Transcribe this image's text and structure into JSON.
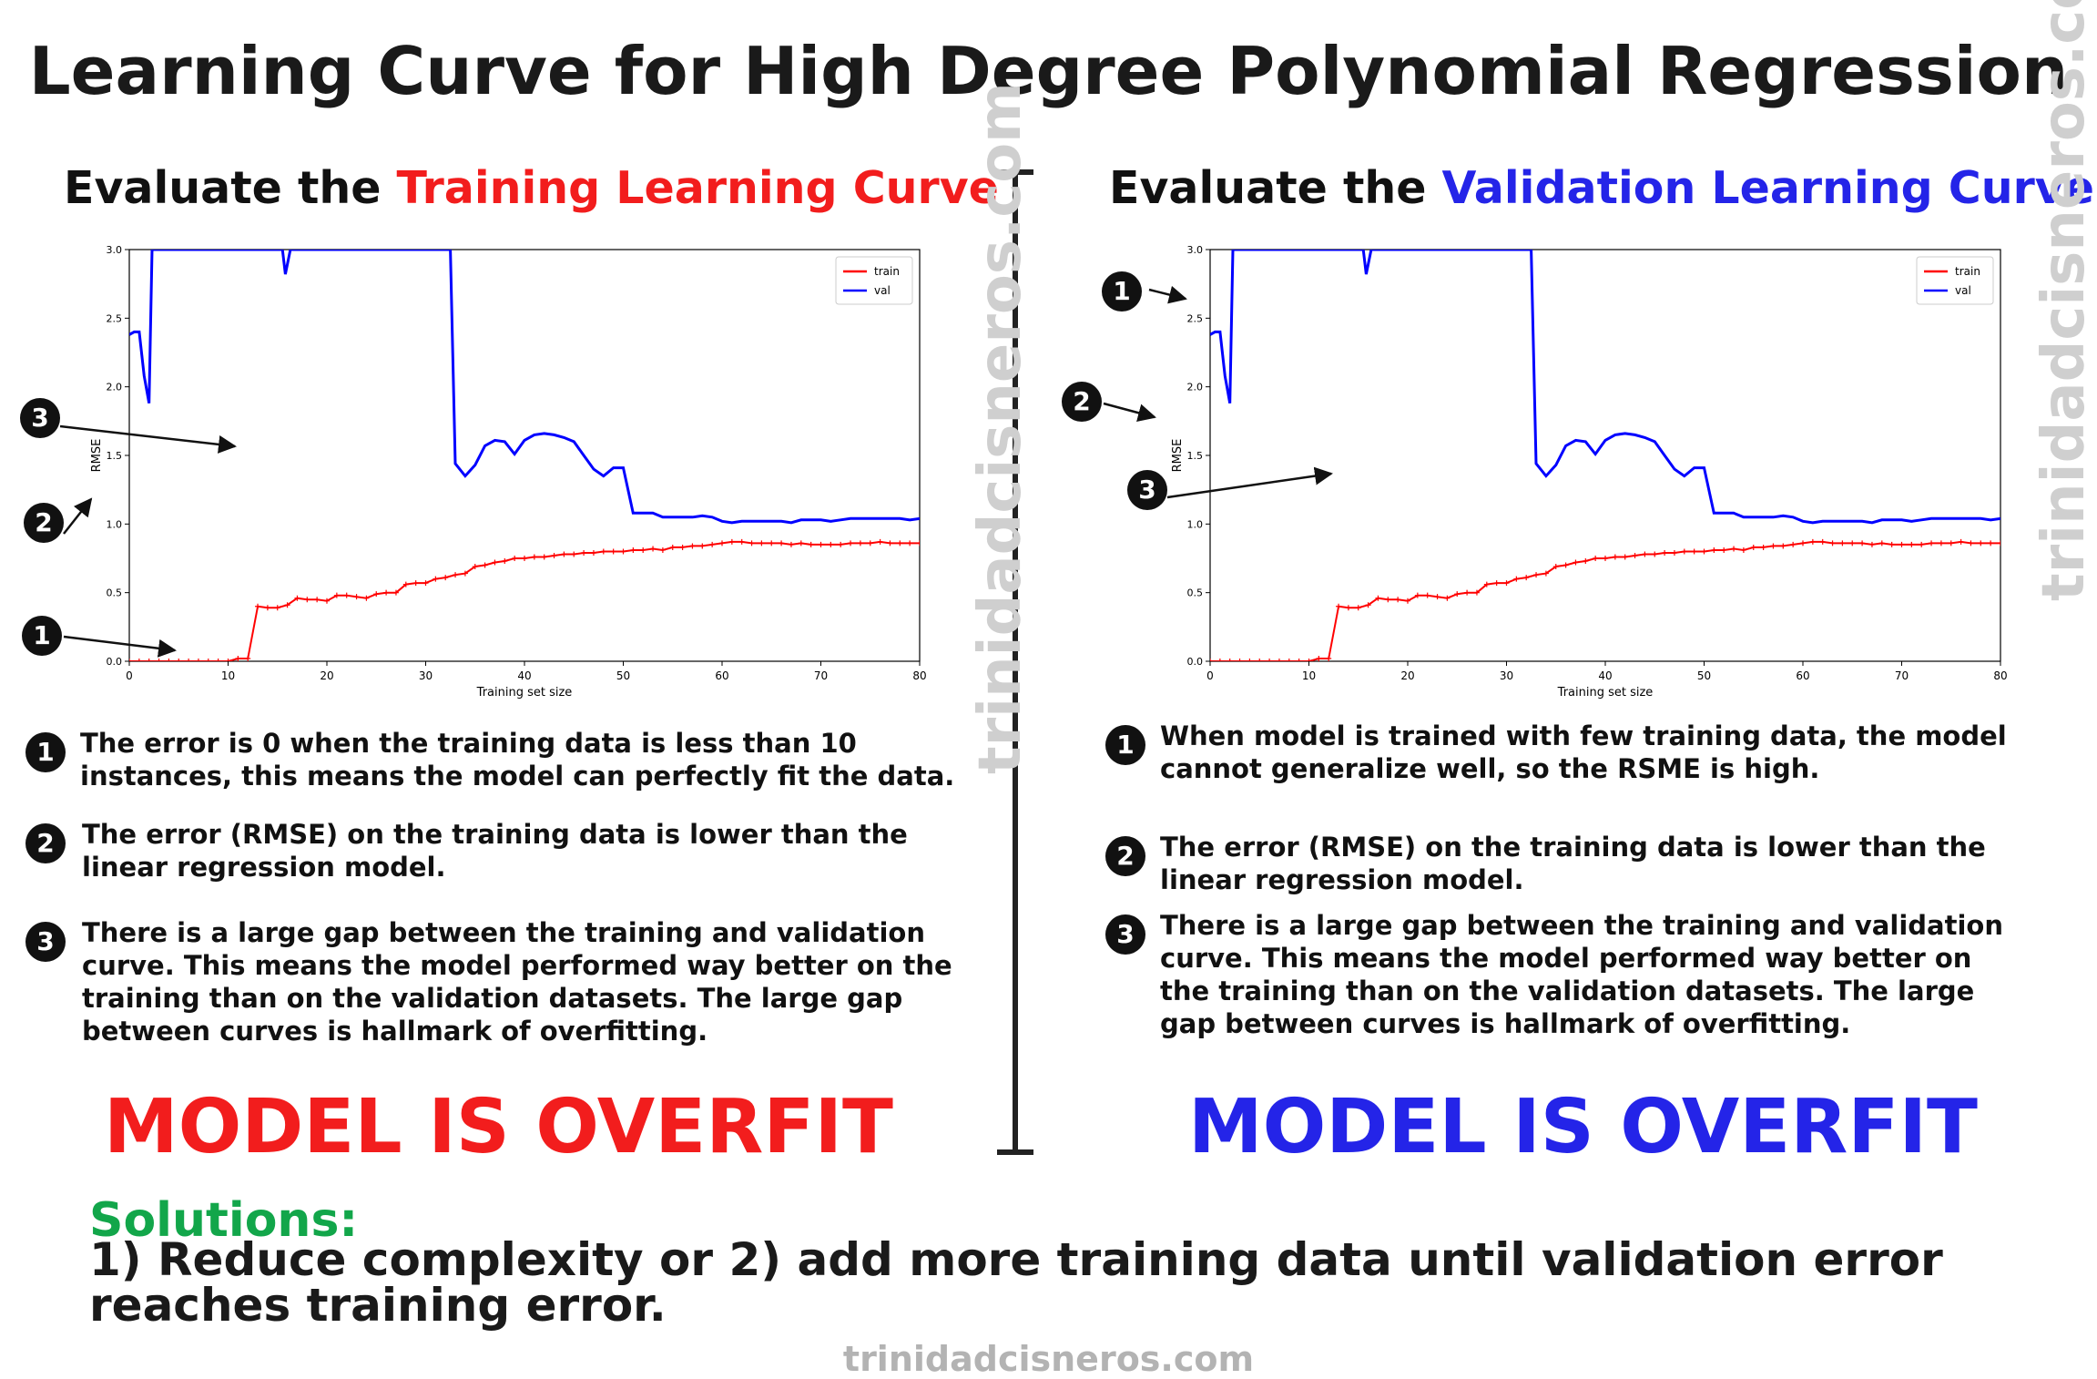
{
  "title": "Learning Curve for High Degree Polynomial Regression",
  "left": {
    "subtitle_prefix": "Evaluate the ",
    "subtitle_highlight": "Training Learning Curve",
    "verdict": "MODEL IS OVERFIT",
    "notes": [
      {
        "num": "1",
        "text": "The error is 0 when the training data is less than 10 instances, this means the model can perfectly fit the data."
      },
      {
        "num": "2",
        "text": "The error (RMSE) on the training data is lower than the linear regression model."
      },
      {
        "num": "3",
        "text": "There is a large gap between the training and validation curve. This means the model performed way better on the training than on the validation datasets. The large gap between curves is hallmark of overfitting."
      }
    ],
    "callouts": [
      "3",
      "2",
      "1"
    ]
  },
  "right": {
    "subtitle_prefix": "Evaluate the ",
    "subtitle_highlight": "Validation Learning Curve",
    "verdict": "MODEL IS OVERFIT",
    "notes": [
      {
        "num": "1",
        "text": "When model is trained with few training data, the model cannot generalize well, so the RSME is high."
      },
      {
        "num": "2",
        "text": "The error (RMSE) on the training data is lower than the linear regression model."
      },
      {
        "num": "3",
        "text": "There is a large gap between the training and validation curve. This means the model performed way better on the training than on the validation datasets. The large gap between curves is hallmark of overfitting."
      }
    ],
    "callouts": [
      "1",
      "2",
      "3"
    ]
  },
  "solutions": {
    "label": "Solutions:",
    "text": "1) Reduce complexity or 2) add more training data until validation error reaches training error."
  },
  "watermark": "trinidadcisneros.com",
  "colors": {
    "train": "#ff0000",
    "val": "#0000ff",
    "left_accent": "#f21d1d",
    "right_accent": "#2424e8",
    "solutions": "#12a64a"
  },
  "chart_data": {
    "type": "line",
    "xlabel": "Training set size",
    "ylabel": "RMSE",
    "xlim": [
      0,
      80
    ],
    "ylim": [
      0,
      3.0
    ],
    "xticks": [
      0,
      10,
      20,
      30,
      40,
      50,
      60,
      70,
      80
    ],
    "yticks": [
      "0.0",
      "0.5",
      "1.0",
      "1.5",
      "2.0",
      "2.5",
      "3.0"
    ],
    "legend_position": "top-right",
    "series": [
      {
        "name": "train",
        "color": "#ff0000",
        "marker": "+",
        "x": [
          0,
          1,
          2,
          3,
          4,
          5,
          6,
          7,
          8,
          9,
          10,
          11,
          12,
          13,
          14,
          15,
          16,
          17,
          18,
          19,
          20,
          21,
          22,
          23,
          24,
          25,
          26,
          27,
          28,
          29,
          30,
          31,
          32,
          33,
          34,
          35,
          36,
          37,
          38,
          39,
          40,
          41,
          42,
          43,
          44,
          45,
          46,
          47,
          48,
          49,
          50,
          51,
          52,
          53,
          54,
          55,
          56,
          57,
          58,
          59,
          60,
          61,
          62,
          63,
          64,
          65,
          66,
          67,
          68,
          69,
          70,
          71,
          72,
          73,
          74,
          75,
          76,
          77,
          78,
          79,
          80
        ],
        "y": [
          0,
          0,
          0,
          0,
          0,
          0,
          0,
          0,
          0,
          0,
          0,
          0.02,
          0.02,
          0.4,
          0.39,
          0.39,
          0.41,
          0.46,
          0.45,
          0.45,
          0.44,
          0.48,
          0.48,
          0.47,
          0.46,
          0.49,
          0.5,
          0.5,
          0.56,
          0.57,
          0.57,
          0.6,
          0.61,
          0.63,
          0.64,
          0.69,
          0.7,
          0.72,
          0.73,
          0.75,
          0.75,
          0.76,
          0.76,
          0.77,
          0.78,
          0.78,
          0.79,
          0.79,
          0.8,
          0.8,
          0.8,
          0.81,
          0.81,
          0.82,
          0.81,
          0.83,
          0.83,
          0.84,
          0.84,
          0.85,
          0.86,
          0.87,
          0.87,
          0.86,
          0.86,
          0.86,
          0.86,
          0.85,
          0.86,
          0.85,
          0.85,
          0.85,
          0.85,
          0.86,
          0.86,
          0.86,
          0.87,
          0.86,
          0.86,
          0.86,
          0.86
        ]
      },
      {
        "name": "val",
        "color": "#0000ff",
        "x": [
          0,
          0.5,
          1,
          1.5,
          2,
          2.3,
          2.6,
          3,
          4,
          5,
          6,
          7,
          8,
          9,
          10,
          11,
          12,
          13,
          14,
          15,
          15.5,
          15.8,
          16.3,
          17,
          18,
          19,
          20,
          21,
          22,
          23,
          24,
          25,
          26,
          27,
          28,
          29,
          30,
          31,
          32,
          32.5,
          33,
          34,
          35,
          36,
          37,
          38,
          39,
          40,
          41,
          42,
          43,
          44,
          45,
          46,
          47,
          48,
          49,
          50,
          51,
          52,
          53,
          54,
          55,
          56,
          57,
          58,
          59,
          60,
          61,
          62,
          63,
          64,
          65,
          66,
          67,
          68,
          69,
          70,
          71,
          72,
          73,
          74,
          75,
          76,
          77,
          78,
          79,
          80
        ],
        "y": [
          2.38,
          2.4,
          2.4,
          2.08,
          1.88,
          3.0,
          3.0,
          3.0,
          3.0,
          3.0,
          3.0,
          3.0,
          3.0,
          3.0,
          3.0,
          3.0,
          3.0,
          3.0,
          3.0,
          3.0,
          3.0,
          2.82,
          3.0,
          3.0,
          3.0,
          3.0,
          3.0,
          3.0,
          3.0,
          3.0,
          3.0,
          3.0,
          3.0,
          3.0,
          3.0,
          3.0,
          3.0,
          3.0,
          3.0,
          3.0,
          1.44,
          1.35,
          1.43,
          1.57,
          1.61,
          1.6,
          1.51,
          1.61,
          1.65,
          1.66,
          1.65,
          1.63,
          1.6,
          1.5,
          1.4,
          1.35,
          1.41,
          1.41,
          1.08,
          1.08,
          1.08,
          1.05,
          1.05,
          1.05,
          1.05,
          1.06,
          1.05,
          1.02,
          1.01,
          1.02,
          1.02,
          1.02,
          1.02,
          1.02,
          1.01,
          1.03,
          1.03,
          1.03,
          1.02,
          1.03,
          1.04,
          1.04,
          1.04,
          1.04,
          1.04,
          1.04,
          1.03,
          1.04
        ]
      }
    ]
  }
}
